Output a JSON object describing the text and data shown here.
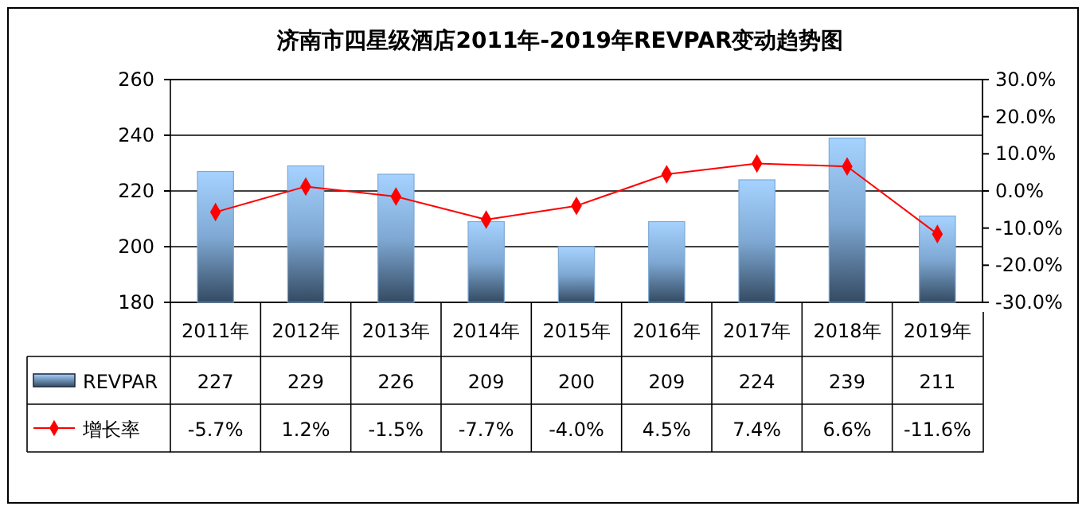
{
  "chart_data": {
    "type": "bar",
    "title": "济南市四星级酒店2011年-2019年REVPAR变动趋势图",
    "categories": [
      "2011年",
      "2012年",
      "2013年",
      "2014年",
      "2015年",
      "2016年",
      "2017年",
      "2018年",
      "2019年"
    ],
    "series": [
      {
        "name": "REVPAR",
        "color": "#7fa9d4",
        "values": [
          227,
          229,
          226,
          209,
          200,
          209,
          224,
          239,
          211
        ]
      },
      {
        "name": "增长率",
        "type": "line",
        "axis": "y2",
        "color": "#ff0000",
        "marker": "diamond",
        "values": [
          -5.7,
          1.2,
          -1.5,
          -7.7,
          -4.0,
          4.5,
          7.4,
          6.6,
          -11.6
        ],
        "value_labels": [
          "-5.7%",
          "1.2%",
          "-1.5%",
          "-7.7%",
          "-4.0%",
          "4.5%",
          "7.4%",
          "6.6%",
          "-11.6%"
        ]
      }
    ],
    "ylim": [
      180,
      260
    ],
    "yticks": [
      180,
      200,
      220,
      240,
      260
    ],
    "y2lim": [
      -30,
      30
    ],
    "y2ticks": [
      {
        "value": -30,
        "label": "-30.0%"
      },
      {
        "value": -20,
        "label": "-20.0%"
      },
      {
        "value": -10,
        "label": "-10.0%"
      },
      {
        "value": 0,
        "label": "0.0%"
      },
      {
        "value": 10,
        "label": "10.0%"
      },
      {
        "value": 20,
        "label": "20.0%"
      },
      {
        "value": 30,
        "label": "30.0%"
      }
    ],
    "grid": "y",
    "legend": "bottom left",
    "data_labels": true
  }
}
